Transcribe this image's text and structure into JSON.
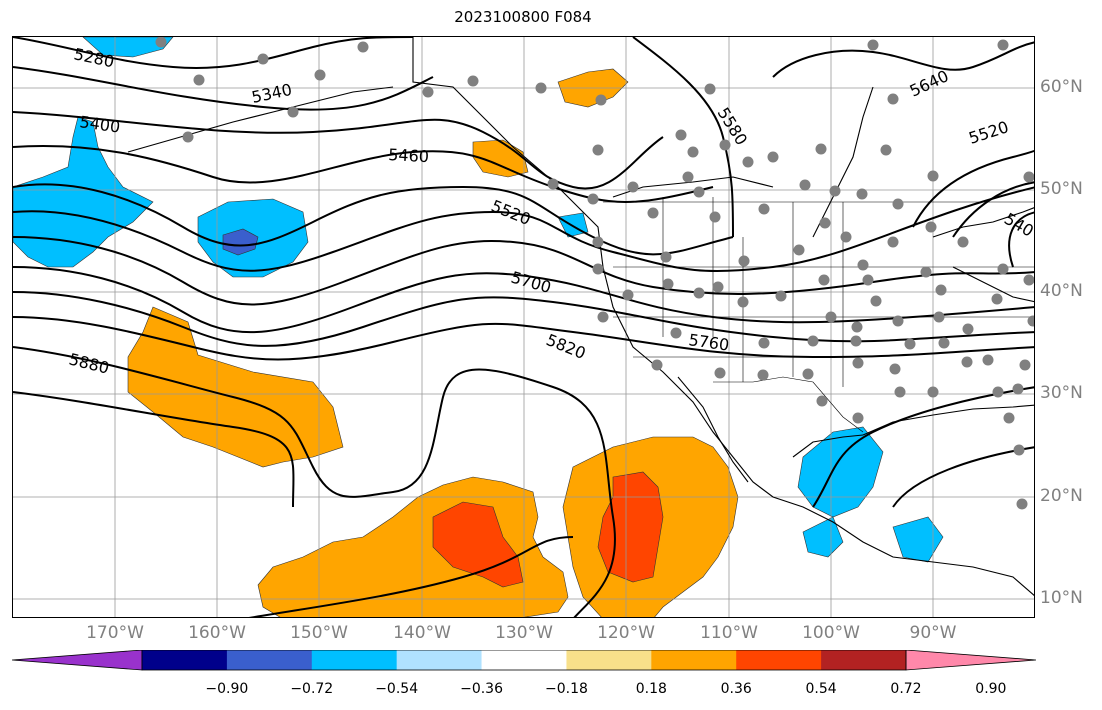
{
  "title": "2023100800 F084",
  "map": {
    "lon_range": [
      -180,
      -80
    ],
    "lat_range": [
      8,
      65
    ],
    "projection": "plate-carree",
    "grid": true,
    "lon_labels": [
      "170°W",
      "160°W",
      "150°W",
      "140°W",
      "130°W",
      "120°W",
      "110°W",
      "100°W",
      "90°W"
    ],
    "lat_labels": [
      "10°N",
      "20°N",
      "30°N",
      "40°N",
      "50°N",
      "60°N"
    ],
    "contour_labels": [
      "5280",
      "5340",
      "5400",
      "5460",
      "5520",
      "5580",
      "5640",
      "5520",
      "540",
      "5700",
      "5760",
      "5820",
      "5880"
    ],
    "fill_colors": {
      "positive_mid": "#ffa500",
      "positive_high": "#ff4500",
      "negative_mid": "#00bfff",
      "negative_high": "#4169e1"
    },
    "station_dot_color": "#808080"
  },
  "colorbar": {
    "ticks": [
      "−0.90",
      "−0.72",
      "−0.54",
      "−0.36",
      "−0.18",
      "0.18",
      "0.36",
      "0.54",
      "0.72",
      "0.90"
    ],
    "segment_colors": [
      "#9932cc",
      "#00008b",
      "#3a5fcd",
      "#00bfff",
      "#b0e2ff",
      "#ffffff",
      "#f8e08a",
      "#ffa500",
      "#ff4500",
      "#b22222",
      "#ff88aa"
    ]
  }
}
